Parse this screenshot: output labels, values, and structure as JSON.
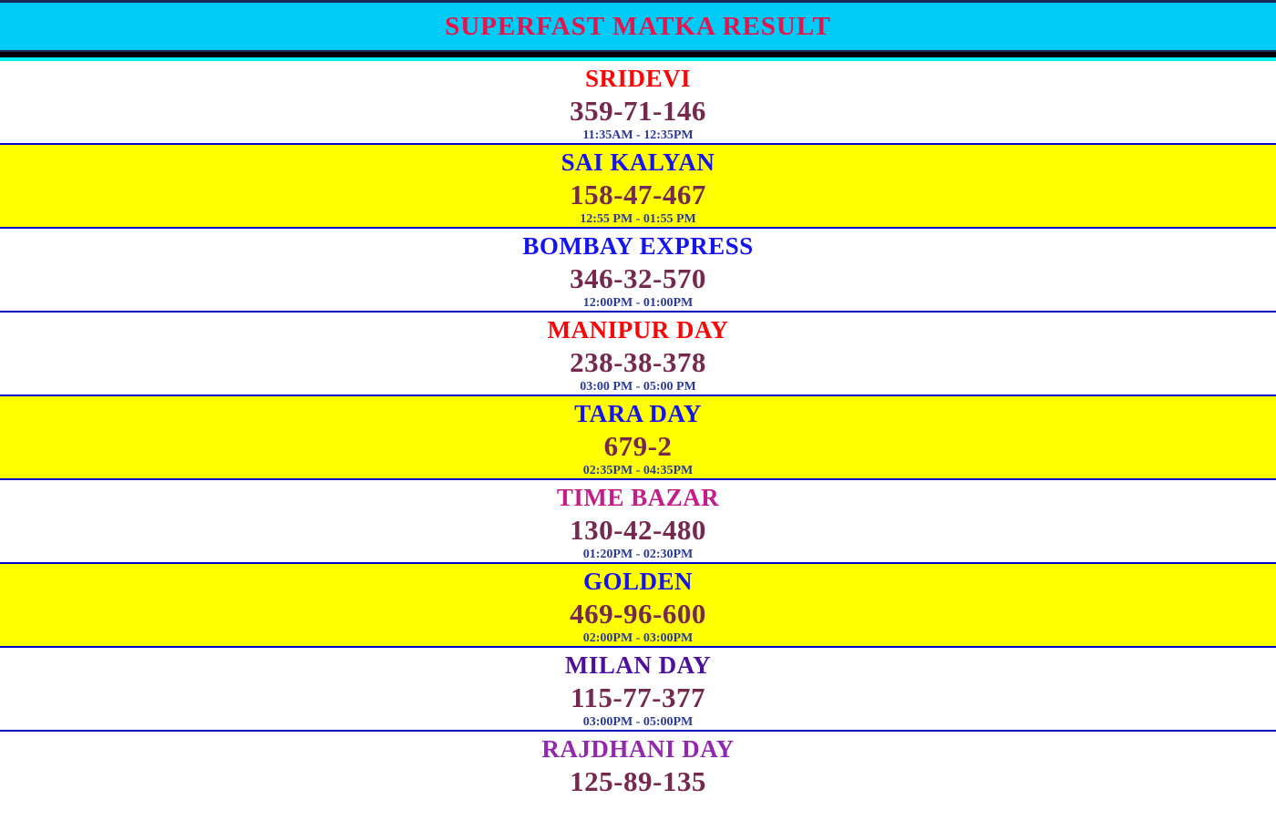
{
  "header": {
    "title": "SUPERFAST MATKA RESULT",
    "bg_color": "#00cbf7",
    "title_color": "#e6134d"
  },
  "colors": {
    "header_border": "#1b2a55",
    "black_bar": "#000000",
    "cyan_divider": "#00f0f2",
    "row_border": "#0101cc",
    "result_color": "#75294f",
    "time_color": "#2b3a94",
    "yellow_row_bg": "#ffff00",
    "white_row_bg": "#ffffff"
  },
  "markets": [
    {
      "name": "SRIDEVI",
      "name_color": "#fb0606",
      "result": "359-71-146",
      "time": "11:35AM - 12:35PM",
      "bg": "#ffffff"
    },
    {
      "name": "SAI KALYAN",
      "name_color": "#1414ee",
      "result": "158-47-467",
      "time": "12:55 PM - 01:55 PM",
      "bg": "#ffff00"
    },
    {
      "name": "BOMBAY EXPRESS",
      "name_color": "#1414ee",
      "result": "346-32-570",
      "time": "12:00PM - 01:00PM",
      "bg": "#ffffff"
    },
    {
      "name": "MANIPUR DAY",
      "name_color": "#fb0606",
      "result": "238-38-378",
      "time": "03:00 PM - 05:00 PM",
      "bg": "#ffffff"
    },
    {
      "name": "TARA DAY",
      "name_color": "#1414ee",
      "result": "679-2",
      "time": "02:35PM - 04:35PM",
      "bg": "#ffff00"
    },
    {
      "name": "TIME BAZAR",
      "name_color": "#c41d8a",
      "result": "130-42-480",
      "time": "01:20PM - 02:30PM",
      "bg": "#ffffff"
    },
    {
      "name": "GOLDEN",
      "name_color": "#1414ee",
      "result": "469-96-600",
      "time": "02:00PM - 03:00PM",
      "bg": "#ffff00"
    },
    {
      "name": "MILAN DAY",
      "name_color": "#4d0f9e",
      "result": "115-77-377",
      "time": "03:00PM - 05:00PM",
      "bg": "#ffffff"
    },
    {
      "name": "RAJDHANI DAY",
      "name_color": "#9227b0",
      "result": "125-89-135",
      "time": "",
      "bg": "#ffffff"
    }
  ]
}
